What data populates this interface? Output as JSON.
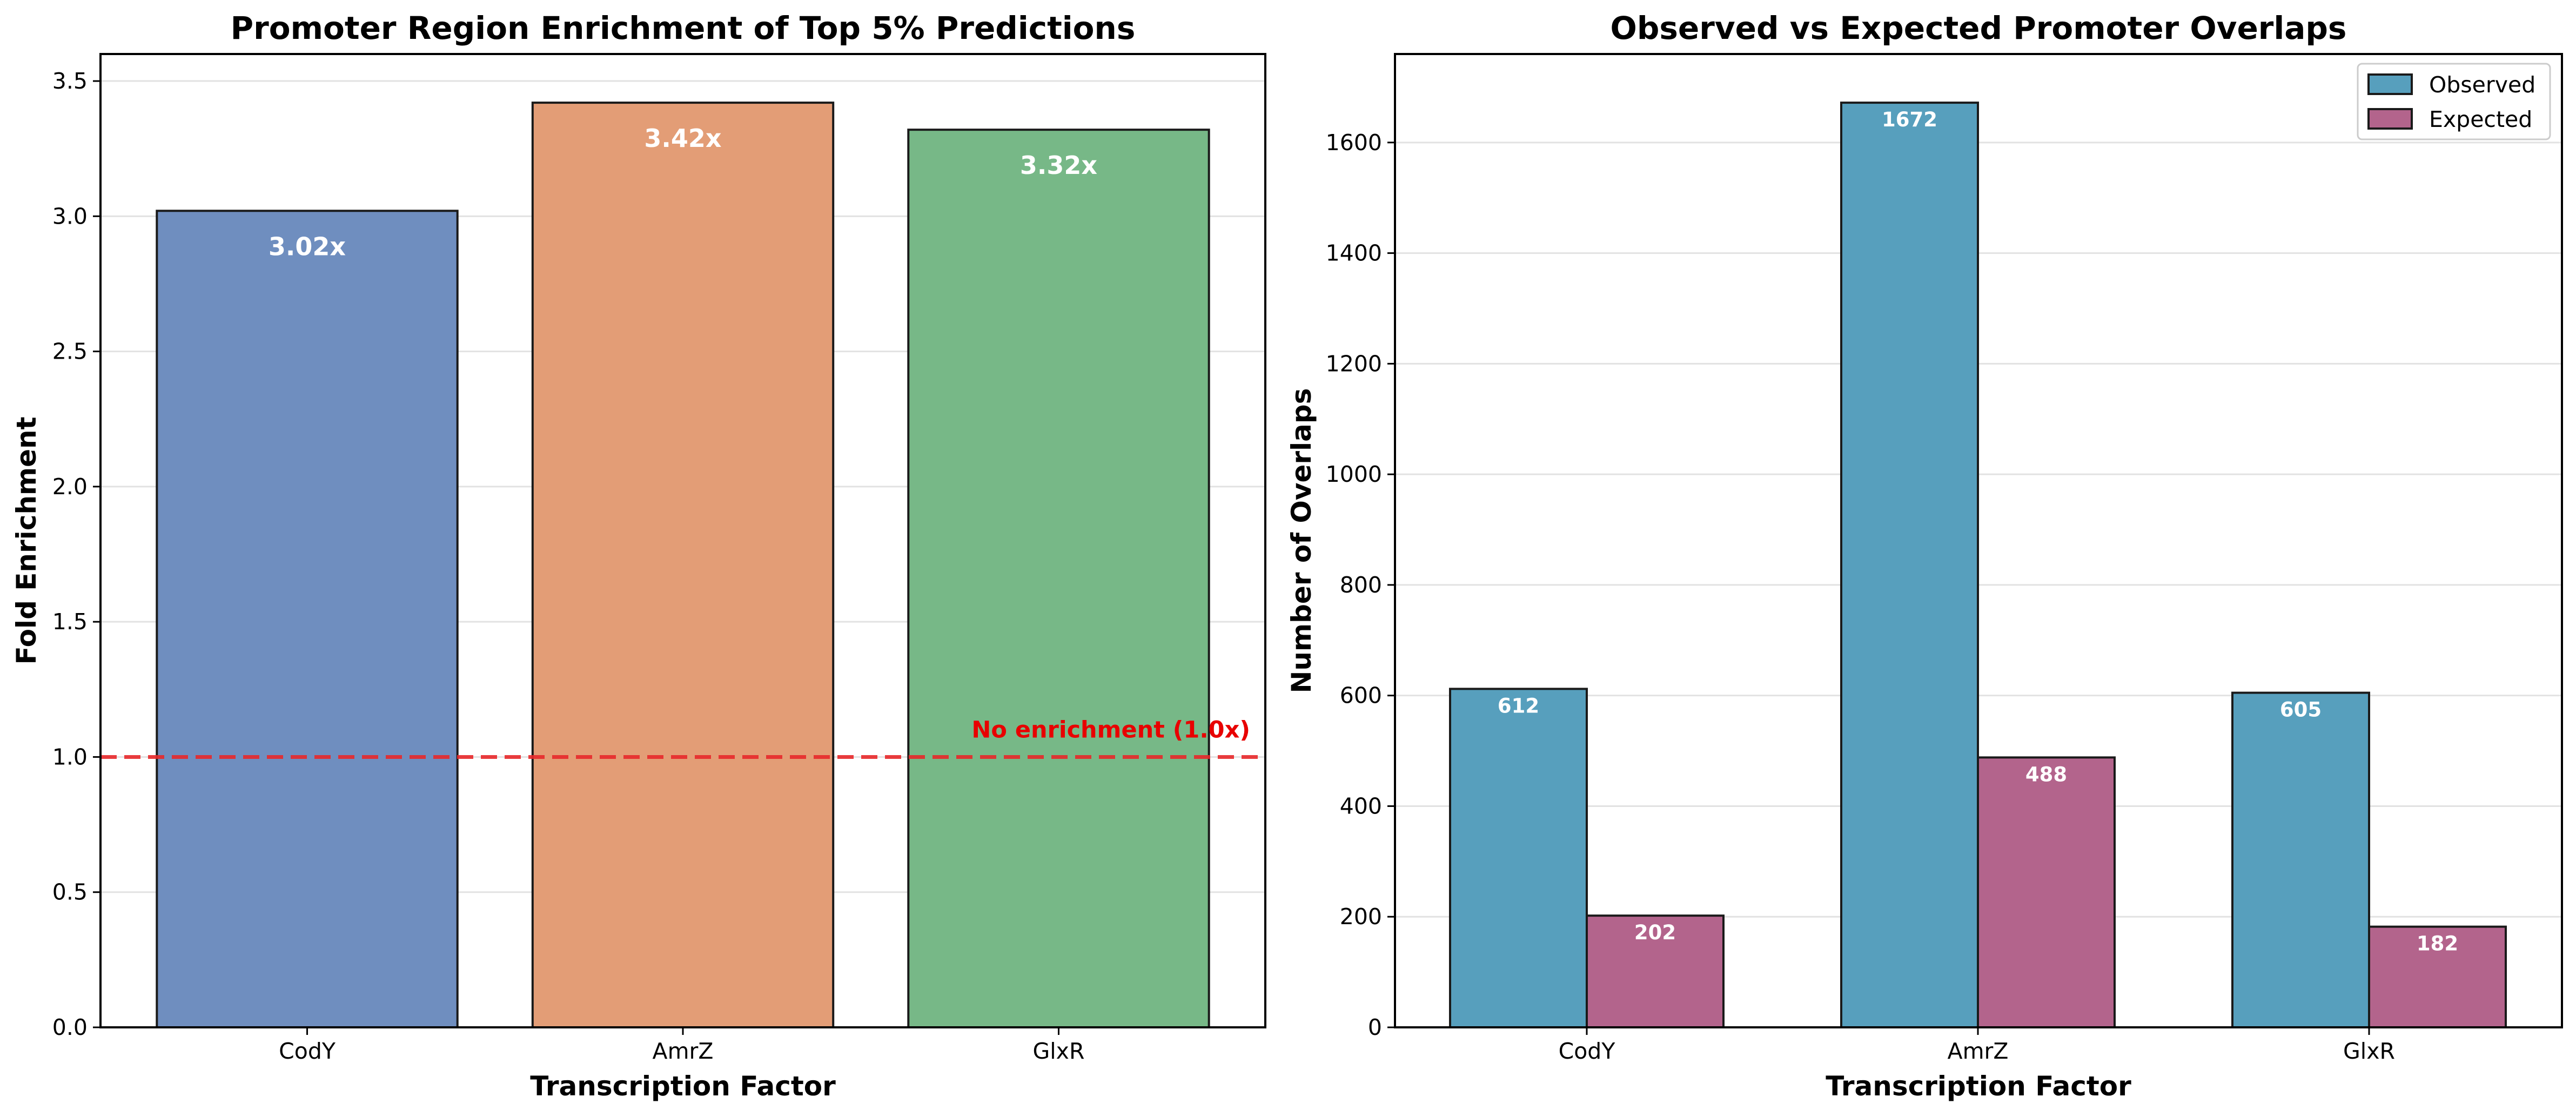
{
  "chart_data": [
    {
      "type": "bar",
      "title": "Promoter Region Enrichment of Top 5% Predictions",
      "xlabel": "Transcription Factor",
      "ylabel": "Fold Enrichment",
      "categories": [
        "CodY",
        "AmrZ",
        "GlxR"
      ],
      "values": [
        3.02,
        3.42,
        3.32
      ],
      "value_labels": [
        "3.02x",
        "3.42x",
        "3.32x"
      ],
      "colors": [
        "#6f8ebf",
        "#e39d76",
        "#77b887"
      ],
      "ylim": [
        0,
        3.6
      ],
      "yticks": [
        0.0,
        0.5,
        1.0,
        1.5,
        2.0,
        2.5,
        3.0,
        3.5
      ],
      "ytick_labels": [
        "0.0",
        "0.5",
        "1.0",
        "1.5",
        "2.0",
        "2.5",
        "3.0",
        "3.5"
      ],
      "reference_line": {
        "value": 1.0,
        "label": "No enrichment (1.0x)",
        "color": "#e8292b",
        "style": "dashed"
      },
      "grid": "y"
    },
    {
      "type": "bar",
      "title": "Observed vs Expected Promoter Overlaps",
      "xlabel": "Transcription Factor",
      "ylabel": "Number of Overlaps",
      "categories": [
        "CodY",
        "AmrZ",
        "GlxR"
      ],
      "series": [
        {
          "name": "Observed",
          "values": [
            612,
            1672,
            605
          ],
          "color": "#579fbd"
        },
        {
          "name": "Expected",
          "values": [
            202,
            488,
            182
          ],
          "color": "#b3648c"
        }
      ],
      "ylim": [
        0,
        1760
      ],
      "yticks": [
        0,
        200,
        400,
        600,
        800,
        1000,
        1200,
        1400,
        1600
      ],
      "ytick_labels": [
        "0",
        "200",
        "400",
        "600",
        "800",
        "1000",
        "1200",
        "1400",
        "1600"
      ],
      "legend": "top-right",
      "grid": "y"
    }
  ]
}
